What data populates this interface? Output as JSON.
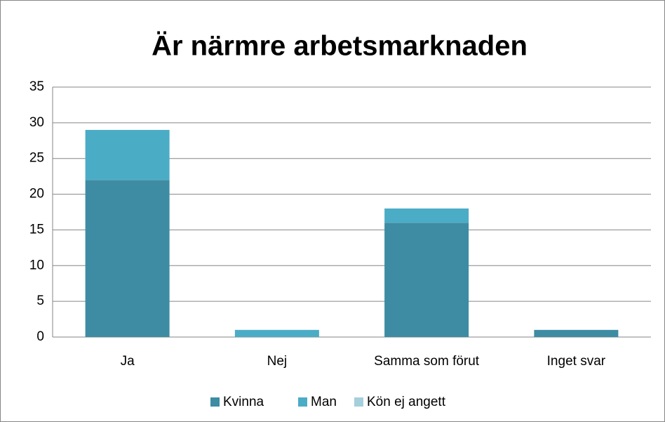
{
  "chart_data": {
    "type": "stacked_bar",
    "title": "Är närmre arbetsmarknaden",
    "categories": [
      "Ja",
      "Nej",
      "Samma som förut",
      "Inget svar"
    ],
    "series": [
      {
        "name": "Kvinna",
        "color": "#3d8ca3",
        "values": [
          22,
          0,
          16,
          1
        ]
      },
      {
        "name": "Man",
        "color": "#4bacc6",
        "values": [
          7,
          1,
          2,
          0
        ]
      },
      {
        "name": "Kön ej angett",
        "color": "#a5cfdc",
        "values": [
          0,
          0,
          0,
          0
        ]
      }
    ],
    "ylim": [
      0,
      35
    ],
    "yticks": [
      0,
      5,
      10,
      15,
      20,
      25,
      30,
      35
    ],
    "grid": true,
    "legend": "bottom"
  }
}
